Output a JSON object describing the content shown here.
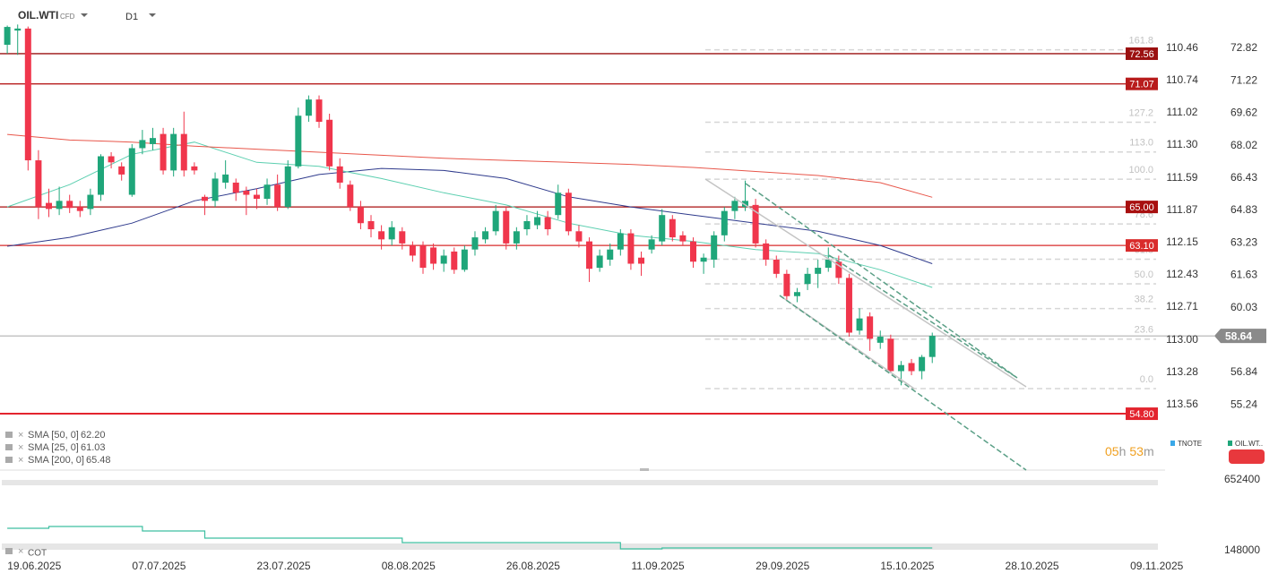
{
  "chart_data": [
    {
      "type": "candlestick",
      "symbol": "OIL.WTI",
      "instrument": "CFD",
      "timeframe": "D1",
      "up_color": "#1fa67a",
      "down_color": "#f0364c",
      "open": [
        73.0,
        73.7,
        73.8,
        67.3,
        65.2,
        64.9,
        65.3,
        65.0,
        64.9,
        65.6,
        67.5,
        67.0,
        65.6,
        67.9,
        68.1,
        68.6,
        66.8,
        68.6,
        67.0,
        65.5,
        65.3,
        66.2,
        66.2,
        65.8,
        65.6,
        65.4,
        66.1,
        65.0,
        67.0,
        69.5,
        70.3,
        69.3,
        67.0,
        66.1,
        65.0,
        64.3,
        63.8,
        63.4,
        63.8,
        63.1,
        63.1,
        63.0,
        62.2,
        62.8,
        61.9,
        62.9,
        63.4,
        63.8,
        64.8,
        63.2,
        63.9,
        64.1,
        64.5,
        64.6,
        65.7,
        63.8,
        63.3,
        62.0,
        62.4,
        62.9,
        63.7,
        62.5,
        62.9,
        63.3,
        64.4,
        63.6,
        63.3,
        62.3,
        62.4,
        63.6,
        64.8,
        65.0,
        65.1,
        63.2,
        62.4,
        61.7,
        60.6,
        61.2,
        61.7,
        62.0,
        62.3,
        61.5,
        58.9,
        59.6,
        58.3,
        58.5,
        56.9,
        57.3,
        56.9,
        57.6
      ],
      "high": [
        73.95,
        74.0,
        73.9,
        67.8,
        65.9,
        66.0,
        65.6,
        65.3,
        65.9,
        67.6,
        67.7,
        67.2,
        68.1,
        68.8,
        68.9,
        68.9,
        68.9,
        69.7,
        67.2,
        65.6,
        66.7,
        67.3,
        66.4,
        66.0,
        65.9,
        66.4,
        66.6,
        67.3,
        69.9,
        70.5,
        70.5,
        69.6,
        67.4,
        66.3,
        65.3,
        64.6,
        64.1,
        64.3,
        64.0,
        63.3,
        63.3,
        63.2,
        62.9,
        63.0,
        63.1,
        63.8,
        64.0,
        65.1,
        65.0,
        64.0,
        64.6,
        64.8,
        64.8,
        66.1,
        65.9,
        64.1,
        63.5,
        62.9,
        63.2,
        63.9,
        63.9,
        62.8,
        63.6,
        64.9,
        64.6,
        63.8,
        63.5,
        62.7,
        63.8,
        65.0,
        65.5,
        66.3,
        65.4,
        63.4,
        62.6,
        61.9,
        61.0,
        62.0,
        62.4,
        63.0,
        62.6,
        61.7,
        60.0,
        59.8,
        58.9,
        58.7,
        57.4,
        57.5,
        57.7,
        58.8
      ],
      "low": [
        72.56,
        72.5,
        66.8,
        64.4,
        64.5,
        64.6,
        64.7,
        64.5,
        64.6,
        65.3,
        66.9,
        66.3,
        65.5,
        67.6,
        67.8,
        66.6,
        66.5,
        66.5,
        66.6,
        64.6,
        65.0,
        65.9,
        65.3,
        64.6,
        64.9,
        65.1,
        64.8,
        64.9,
        66.9,
        69.2,
        68.9,
        66.8,
        65.9,
        64.8,
        63.9,
        63.5,
        62.9,
        63.1,
        62.9,
        62.3,
        61.7,
        61.9,
        61.8,
        61.7,
        61.8,
        62.6,
        63.2,
        63.6,
        62.9,
        62.9,
        63.6,
        63.9,
        63.6,
        64.4,
        63.6,
        63.0,
        61.3,
        61.8,
        62.1,
        62.6,
        61.9,
        61.6,
        62.7,
        63.1,
        63.3,
        63.1,
        62.0,
        61.7,
        62.0,
        63.3,
        64.4,
        64.8,
        63.0,
        62.1,
        61.5,
        60.4,
        60.3,
        60.9,
        61.0,
        61.8,
        61.2,
        58.6,
        58.7,
        57.9,
        58.0,
        56.8,
        56.2,
        56.7,
        56.5,
        57.3
      ],
      "close": [
        73.88,
        73.8,
        67.3,
        65.0,
        64.9,
        65.3,
        64.95,
        64.8,
        65.6,
        67.5,
        67.2,
        66.6,
        67.9,
        68.3,
        68.4,
        66.8,
        68.6,
        66.8,
        66.8,
        65.3,
        66.4,
        66.6,
        65.7,
        65.6,
        65.4,
        66.1,
        65.0,
        67.0,
        69.5,
        70.3,
        69.2,
        67.0,
        66.2,
        65.0,
        64.2,
        63.9,
        63.4,
        64.0,
        63.2,
        62.6,
        62.0,
        62.2,
        62.6,
        61.9,
        62.9,
        63.5,
        63.8,
        64.8,
        63.2,
        63.8,
        64.3,
        64.5,
        63.9,
        65.7,
        63.8,
        63.3,
        61.95,
        62.6,
        62.9,
        63.7,
        62.2,
        62.2,
        63.4,
        64.6,
        63.5,
        63.3,
        62.3,
        62.5,
        63.6,
        64.8,
        65.3,
        65.3,
        63.2,
        62.4,
        61.7,
        60.6,
        60.8,
        61.7,
        62.0,
        62.4,
        61.5,
        58.8,
        59.5,
        58.5,
        58.6,
        56.9,
        57.2,
        56.9,
        57.6,
        58.64
      ],
      "xlim": [
        -0.7,
        111.4
      ],
      "xticks": [
        {
          "value": 2.6,
          "label": "19.06.2025"
        },
        {
          "value": 14.6,
          "label": "07.07.2025"
        },
        {
          "value": 26.6,
          "label": "23.07.2025"
        },
        {
          "value": 38.6,
          "label": "08.08.2025"
        },
        {
          "value": 50.6,
          "label": "26.08.2025"
        },
        {
          "value": 62.6,
          "label": "11.09.2025"
        },
        {
          "value": 74.6,
          "label": "29.09.2025"
        },
        {
          "value": 86.6,
          "label": "15.10.2025"
        },
        {
          "value": 98.6,
          "label": "28.10.2025"
        },
        {
          "value": 110.6,
          "label": "09.11.2025"
        }
      ],
      "ylim": [
        52.02,
        74.59
      ],
      "yticks": [
        72.82,
        71.22,
        69.62,
        68.02,
        66.43,
        64.83,
        63.23,
        61.63,
        60.03,
        56.84,
        55.24
      ],
      "y2lim": [
        110.15,
        114.13
      ],
      "y2_inverted": true,
      "y2ticks": [
        110.46,
        110.74,
        111.02,
        {
          "value": 111.3,
          "label": "111.30"
        },
        111.59,
        111.87,
        112.15,
        112.43,
        112.71,
        {
          "value": 113,
          "label": "113.00"
        },
        113.28,
        113.56
      ],
      "grid": false,
      "overlays": [
        {
          "name": "SMA [50, 0]",
          "legend_value": "62.20",
          "color": "#2e3a8c",
          "x": [
            0,
            6,
            12,
            18,
            24,
            30,
            36,
            42,
            48,
            54,
            60,
            66,
            72,
            78,
            84,
            89
          ],
          "values": [
            63.06,
            63.5,
            64.2,
            65.3,
            65.9,
            66.6,
            66.9,
            66.8,
            66.4,
            65.5,
            65.0,
            64.6,
            64.2,
            63.8,
            63.1,
            62.2
          ]
        },
        {
          "name": "SMA [25, 0]",
          "legend_value": "61.03",
          "color": "#5ccfb0",
          "x": [
            0,
            6,
            12,
            18,
            24,
            30,
            36,
            42,
            48,
            54,
            60,
            66,
            72,
            78,
            84,
            89
          ],
          "values": [
            65.0,
            66.1,
            67.6,
            68.2,
            67.2,
            67.0,
            66.4,
            65.7,
            65.1,
            64.2,
            63.6,
            63.3,
            62.9,
            62.7,
            61.9,
            61.03
          ]
        },
        {
          "name": "SMA [200, 0]",
          "legend_value": "65.48",
          "color": "#e8564a",
          "x": [
            0,
            6,
            12,
            18,
            24,
            30,
            36,
            42,
            48,
            54,
            60,
            66,
            72,
            78,
            84,
            89
          ],
          "values": [
            68.58,
            68.3,
            68.2,
            68.0,
            67.85,
            67.7,
            67.55,
            67.4,
            67.3,
            67.2,
            67.1,
            66.95,
            66.75,
            66.55,
            66.2,
            65.48
          ]
        }
      ],
      "hlines": [
        {
          "value": 72.56,
          "label": "72.56",
          "color": "#9b1010"
        },
        {
          "value": 71.07,
          "label": "71.07",
          "color": "#b81c1c"
        },
        {
          "value": 65,
          "label": "65.00",
          "color": "#a80f0f"
        },
        {
          "value": 63.1,
          "label": "63.10",
          "color": "#d92b2b"
        },
        {
          "value": 54.8,
          "label": "54.80",
          "color": "#e3242e"
        }
      ],
      "last_price": {
        "value": 58.64,
        "label": "58.64",
        "color": "#8a8a8a"
      },
      "fib": {
        "range": [
          56.04,
          66.37
        ],
        "levels": [
          161.8,
          127.2,
          {
            "value": 113,
            "label": "113.0"
          },
          {
            "value": 100,
            "label": "100.0"
          },
          78.6,
          61.8,
          {
            "value": 50,
            "label": "50.0"
          },
          38.2,
          23.6,
          {
            "value": 0,
            "label": "0.0"
          }
        ]
      },
      "legend": [
        {
          "name": "TNOTE",
          "color": "#3aa8e8"
        },
        {
          "name": "OIL.WT..",
          "color": "#1fa67a"
        }
      ],
      "timer": [
        "05",
        "h",
        "53",
        "m"
      ]
    },
    {
      "type": "line",
      "title": "COT",
      "step": true,
      "series": [
        {
          "name": "COT",
          "color": "#3dbfa0",
          "x": [
            0,
            4,
            13,
            19,
            38,
            59,
            63,
            89
          ],
          "values": [
            307600,
            320400,
            288500,
            237400,
            205500,
            160800,
            167200,
            167200
          ]
        }
      ],
      "ylim": [
        116100,
        690700
      ],
      "yticks": [
        148000,
        652400
      ]
    }
  ]
}
